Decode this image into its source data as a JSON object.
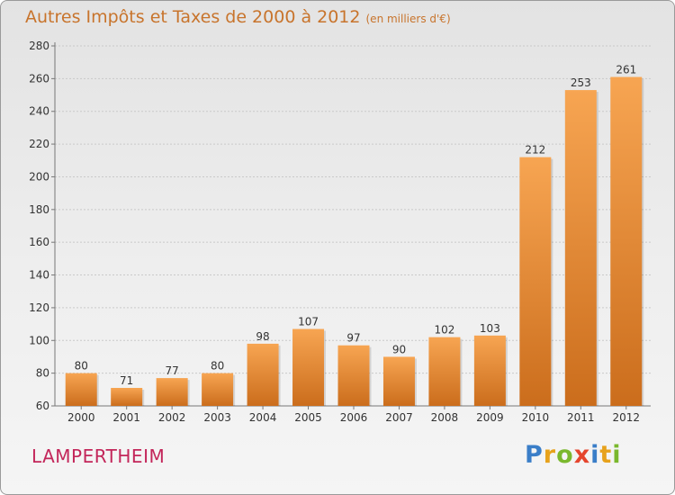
{
  "header": {
    "title": "Autres Impôts et Taxes de 2000 à 2012",
    "subtitle": "(en milliers d'€)"
  },
  "footer": {
    "city": "LAMPERTHEIM",
    "logo": "Proxiti"
  },
  "colors": {
    "bar_light": "#f7a552",
    "bar_dark": "#cb6d1c",
    "title": "#c8742c",
    "city": "#c3265a"
  },
  "chart_data": {
    "type": "bar",
    "title": "Autres Impôts et Taxes de 2000 à 2012",
    "subtitle": "(en milliers d'€)",
    "categories": [
      "2000",
      "2001",
      "2002",
      "2003",
      "2004",
      "2005",
      "2006",
      "2007",
      "2008",
      "2009",
      "2010",
      "2011",
      "2012"
    ],
    "values": [
      80,
      71,
      77,
      80,
      98,
      107,
      97,
      90,
      102,
      103,
      212,
      253,
      261
    ],
    "ylim": [
      60,
      280
    ],
    "yticks": [
      60,
      80,
      100,
      120,
      140,
      160,
      180,
      200,
      220,
      240,
      260,
      280
    ],
    "grid": true,
    "data_labels": true
  }
}
